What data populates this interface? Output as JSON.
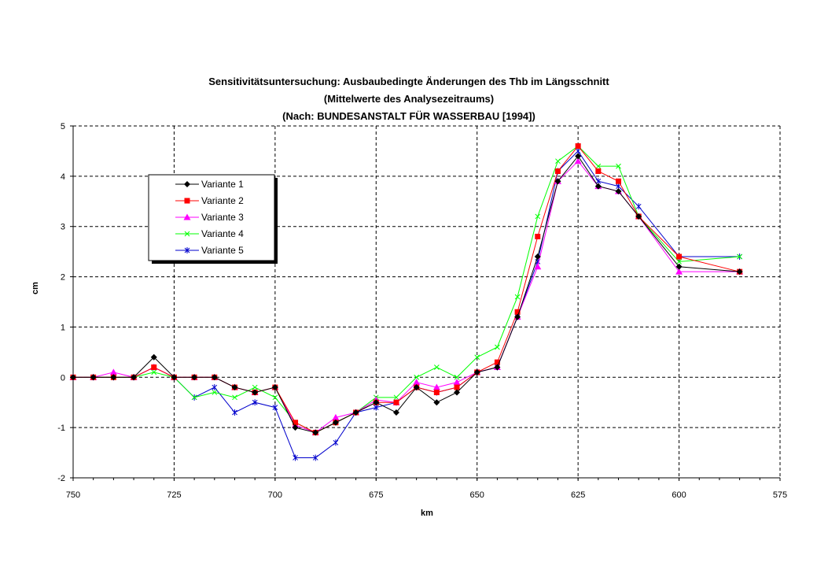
{
  "chart_data": {
    "type": "line",
    "title": [
      "Sensitivitätsuntersuchung: Ausbaubedingte Änderungen des Thb im Längsschnitt",
      "(Mittelwerte des Analysezeitraums)",
      "(Nach: BUNDESANSTALT FÜR WASSERBAU [1994])"
    ],
    "xlabel": "km",
    "ylabel": "cm",
    "xlim": [
      750,
      575
    ],
    "ylim": [
      -2,
      5
    ],
    "xticks": [
      750,
      725,
      700,
      675,
      650,
      625,
      600,
      575
    ],
    "yticks": [
      -2,
      -1,
      0,
      1,
      2,
      3,
      4,
      5
    ],
    "grid": true,
    "legend_placement": "upper-left",
    "x": [
      750,
      745,
      740,
      735,
      730,
      725,
      720,
      715,
      710,
      705,
      700,
      695,
      690,
      685,
      680,
      675,
      670,
      665,
      660,
      655,
      650,
      645,
      640,
      635,
      630,
      625,
      620,
      615,
      610,
      600,
      585
    ],
    "series": [
      {
        "name": "Variante 1",
        "color": "#000000",
        "marker": "diamond",
        "values": [
          0,
          0,
          0,
          0,
          0.4,
          0,
          0,
          0,
          -0.2,
          -0.3,
          -0.2,
          -1.0,
          -1.1,
          -0.9,
          -0.7,
          -0.5,
          -0.7,
          -0.2,
          -0.5,
          -0.3,
          0.1,
          0.2,
          1.2,
          2.4,
          3.9,
          4.4,
          3.8,
          3.7,
          3.2,
          2.2,
          2.1
        ]
      },
      {
        "name": "Variante 2",
        "color": "#ff0000",
        "marker": "square",
        "values": [
          0,
          0,
          0,
          0,
          0.2,
          0,
          0,
          0,
          -0.2,
          -0.3,
          -0.2,
          -0.9,
          -1.1,
          -0.9,
          -0.7,
          -0.5,
          -0.5,
          -0.2,
          -0.3,
          -0.2,
          0.1,
          0.3,
          1.3,
          2.8,
          4.1,
          4.6,
          4.1,
          3.9,
          3.2,
          2.4,
          2.1
        ]
      },
      {
        "name": "Variante 3",
        "color": "#ff00ff",
        "marker": "triangle",
        "values": [
          0,
          0,
          0.1,
          0,
          0.2,
          0,
          0,
          0,
          -0.2,
          -0.3,
          -0.2,
          -0.95,
          -1.1,
          -0.8,
          -0.7,
          -0.45,
          -0.5,
          -0.1,
          -0.2,
          -0.1,
          0.1,
          0.2,
          1.2,
          2.2,
          3.9,
          4.3,
          3.8,
          3.7,
          3.2,
          2.1,
          2.1
        ]
      },
      {
        "name": "Variante 4",
        "color": "#00ff00",
        "marker": "x",
        "values": [
          0,
          0,
          0,
          0,
          0.1,
          0,
          -0.4,
          -0.3,
          -0.4,
          -0.2,
          -0.4,
          -0.9,
          -1.1,
          -0.9,
          -0.7,
          -0.4,
          -0.4,
          0.0,
          0.2,
          0.0,
          0.4,
          0.6,
          1.6,
          3.2,
          4.3,
          4.6,
          4.2,
          4.2,
          3.2,
          2.3,
          2.4
        ]
      },
      {
        "name": "Variante 5",
        "color": "#0000cc",
        "marker": "star",
        "values": [
          0,
          0,
          0,
          0,
          0.2,
          0,
          -0.4,
          -0.2,
          -0.7,
          -0.5,
          -0.6,
          -1.6,
          -1.6,
          -1.3,
          -0.7,
          -0.6,
          -0.5,
          -0.2,
          -0.3,
          -0.2,
          0.1,
          0.2,
          1.2,
          2.3,
          4.1,
          4.5,
          3.9,
          3.8,
          3.4,
          2.4,
          2.4
        ]
      }
    ]
  }
}
